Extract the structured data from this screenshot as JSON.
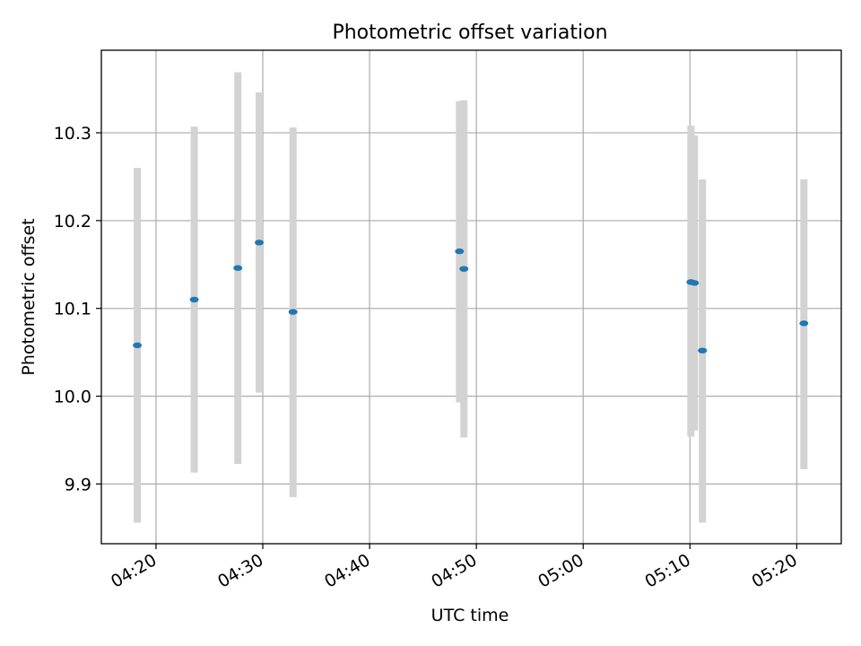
{
  "chart_data": {
    "type": "scatter",
    "title": "Photometric offset variation",
    "xlabel": "UTC time",
    "ylabel": "Photometric offset",
    "x_ticks": [
      "04:20",
      "04:30",
      "04:40",
      "04:50",
      "05:00",
      "05:10",
      "05:20"
    ],
    "y_ticks": [
      "9.9",
      "10.0",
      "10.1",
      "10.2",
      "10.3"
    ],
    "xlim": [
      "04:14:53",
      "05:24:10"
    ],
    "ylim": [
      9.832,
      10.394
    ],
    "grid": true,
    "marker_color": "#1f77b4",
    "errorbar_color": "#d3d3d3",
    "points": [
      {
        "x": "04:18:15",
        "y": 10.058,
        "ymin": 9.856,
        "ymax": 10.26
      },
      {
        "x": "04:23:35",
        "y": 10.11,
        "ymin": 9.913,
        "ymax": 10.307
      },
      {
        "x": "04:27:40",
        "y": 10.146,
        "ymin": 9.923,
        "ymax": 10.369
      },
      {
        "x": "04:29:40",
        "y": 10.175,
        "ymin": 10.004,
        "ymax": 10.346
      },
      {
        "x": "04:32:50",
        "y": 10.096,
        "ymin": 9.885,
        "ymax": 10.306
      },
      {
        "x": "04:48:25",
        "y": 10.165,
        "ymin": 9.993,
        "ymax": 10.336
      },
      {
        "x": "04:48:50",
        "y": 10.145,
        "ymin": 9.953,
        "ymax": 10.337
      },
      {
        "x": "05:10:05",
        "y": 10.13,
        "ymin": 9.954,
        "ymax": 10.308
      },
      {
        "x": "05:10:25",
        "y": 10.129,
        "ymin": 9.961,
        "ymax": 10.297
      },
      {
        "x": "05:11:10",
        "y": 10.052,
        "ymin": 9.856,
        "ymax": 10.247
      },
      {
        "x": "05:20:40",
        "y": 10.083,
        "ymin": 9.917,
        "ymax": 10.247
      }
    ]
  }
}
